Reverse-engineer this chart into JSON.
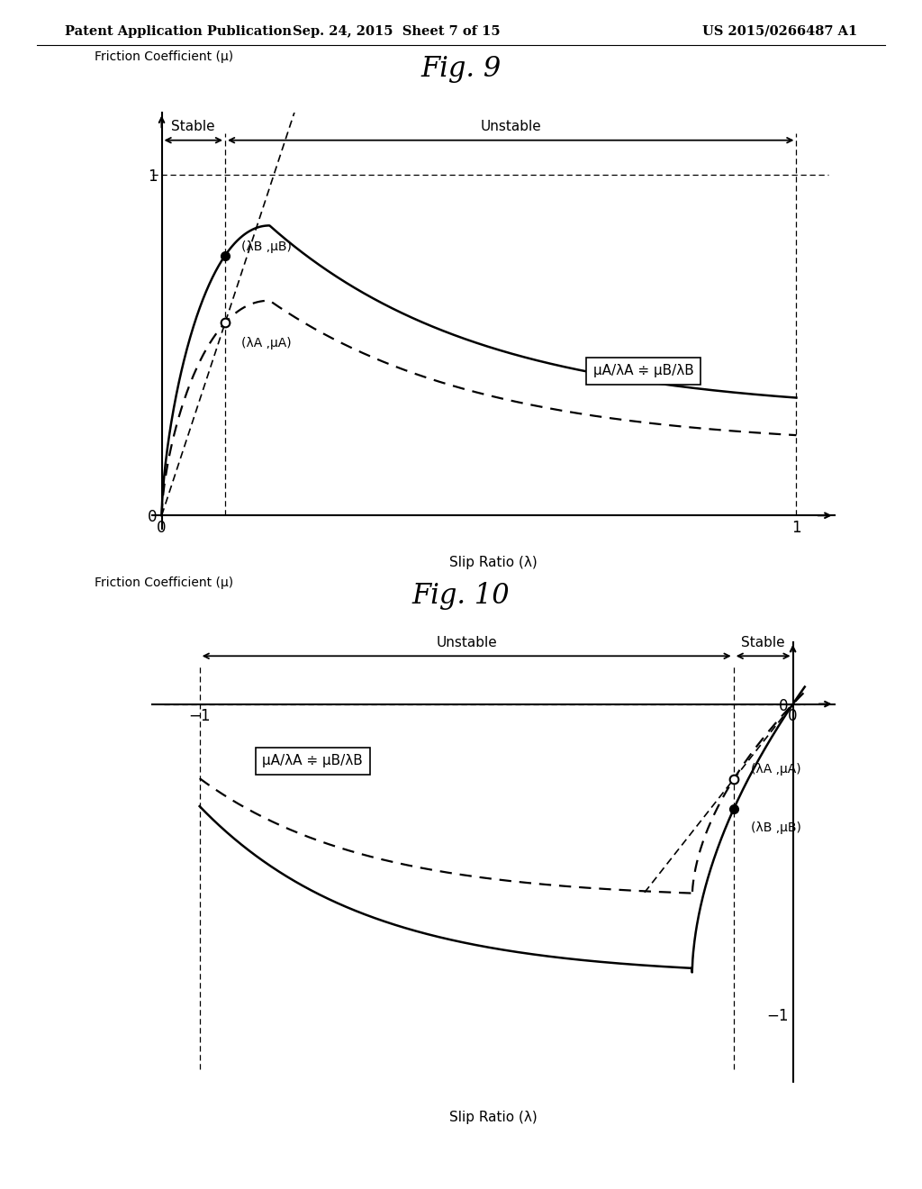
{
  "header_left": "Patent Application Publication",
  "header_center": "Sep. 24, 2015  Sheet 7 of 15",
  "header_right": "US 2015/0266487 A1",
  "fig9_title": "Fig. 9",
  "fig10_title": "Fig. 10",
  "ylabel": "Friction Coefficient (μ)",
  "xlabel": "Slip Ratio (λ)",
  "fig9_stable_label": "Stable",
  "fig9_unstable_label": "Unstable",
  "fig10_stable_label": "Stable",
  "fig10_unstable_label": "Unstable",
  "fig9_equation": "μA/λA ≑ μB/λB",
  "fig10_equation": "μA/λA ≑ μB/λB",
  "fig9_labelA": "(λA ,μA)",
  "fig9_labelB": "(λB ,μB)",
  "fig10_labelA": "(λA ,μA)",
  "fig10_labelB": "(λB ,μB)",
  "background_color": "#ffffff",
  "line_color": "#000000"
}
